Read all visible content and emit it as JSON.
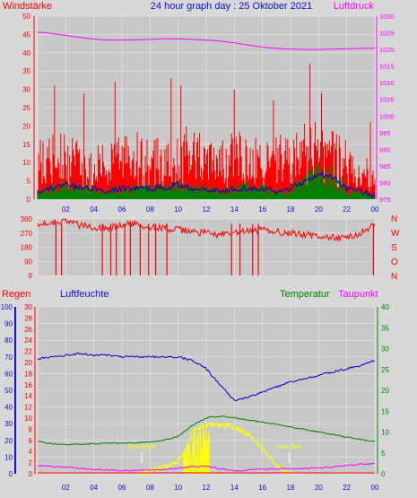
{
  "header": {
    "left_label": "Windstärke",
    "title": "24 hour graph day : 25 Oktober 2021",
    "right_label": "Luftdruck"
  },
  "colors": {
    "background": "#d8d8d8",
    "plot_bg": "#c8c8c8",
    "grid": "#e8e8e8",
    "wind_speed": "#ff0000",
    "wind_avg": "#0000cc",
    "gust_small": "#008000",
    "pressure": "#ff00ff",
    "direction": "#ff0000",
    "rain": "#ff0000",
    "humidity": "#0000cc",
    "temperature": "#008000",
    "dewpoint": "#ff00ff",
    "solar": "#ffff00"
  },
  "chart_data": [
    {
      "type": "line",
      "title": "24 hour graph day : 25 Oktober 2021",
      "left_axis_label": "Windstärke",
      "right_axis_label": "Luftdruck",
      "x_ticks": [
        "02",
        "04",
        "06",
        "08",
        "10",
        "12",
        "14",
        "16",
        "18",
        "20",
        "22",
        "00"
      ],
      "y_left_ticks": [
        "0",
        "5",
        "10",
        "15",
        "20",
        "25",
        "30",
        "35",
        "40",
        "45",
        "50"
      ],
      "y_right_ticks": [
        "975",
        "980",
        "985",
        "990",
        "995",
        "1000",
        "1005",
        "1010",
        "1015",
        "1020",
        "1025",
        "1030"
      ],
      "ylim_left": [
        0,
        50
      ],
      "ylim_right": [
        975,
        1030
      ],
      "grid": true,
      "series": [
        {
          "name": "Windstärke",
          "x": [
            0,
            1,
            2,
            3,
            4,
            5,
            6,
            7,
            8,
            9,
            10,
            11,
            12,
            13,
            14,
            15,
            16,
            17,
            18,
            19,
            20,
            21,
            22,
            23,
            24
          ],
          "values": [
            10,
            12,
            11,
            10,
            9,
            10,
            11,
            12,
            10,
            11,
            12,
            13,
            11,
            10,
            12,
            11,
            10,
            11,
            12,
            14,
            13,
            12,
            10,
            9,
            6
          ],
          "peaks": [
            [
              1.2,
              31
            ],
            [
              3.3,
              29
            ],
            [
              5.5,
              32
            ],
            [
              9.5,
              33
            ],
            [
              10.2,
              31
            ],
            [
              14.0,
              30
            ],
            [
              16.8,
              27
            ],
            [
              19.4,
              37
            ],
            [
              20.2,
              29
            ],
            [
              23.7,
              21
            ]
          ]
        },
        {
          "name": "Windmittel",
          "x": [
            0,
            1,
            2,
            3,
            4,
            5,
            6,
            7,
            8,
            9,
            10,
            11,
            12,
            13,
            14,
            15,
            16,
            17,
            18,
            19,
            20,
            21,
            22,
            23,
            24
          ],
          "values": [
            2,
            3,
            4,
            3,
            3,
            2,
            3,
            3,
            3,
            3,
            4,
            3,
            3,
            2,
            3,
            3,
            3,
            2,
            3,
            5,
            7,
            6,
            3,
            2,
            1
          ]
        },
        {
          "name": "Luftdruck",
          "x": [
            0,
            1,
            2,
            3,
            4,
            5,
            6,
            7,
            8,
            9,
            10,
            11,
            12,
            13,
            14,
            15,
            16,
            17,
            18,
            19,
            20,
            21,
            22,
            23,
            24
          ],
          "values": [
            1025.2,
            1024.8,
            1024.2,
            1023.6,
            1023.1,
            1022.8,
            1022.8,
            1022.9,
            1023.0,
            1023.2,
            1023.2,
            1023.0,
            1022.8,
            1022.5,
            1022.0,
            1021.3,
            1020.7,
            1020.3,
            1020.1,
            1020.0,
            1020.0,
            1020.1,
            1020.2,
            1020.3,
            1020.4
          ]
        }
      ]
    },
    {
      "type": "line",
      "y_left_ticks": [
        "0",
        "90",
        "180",
        "270",
        "360"
      ],
      "y_right_ticks": [
        "N",
        "W",
        "S",
        "O",
        "N"
      ],
      "ylim": [
        0,
        360
      ],
      "x_ticks": [
        "02",
        "04",
        "06",
        "08",
        "10",
        "12",
        "14",
        "16",
        "18",
        "20",
        "22",
        "00"
      ],
      "series": [
        {
          "name": "Windrichtung",
          "x": [
            0,
            1,
            2,
            3,
            4,
            5,
            6,
            7,
            8,
            9,
            10,
            11,
            12,
            13,
            14,
            15,
            16,
            17,
            18,
            19,
            20,
            21,
            22,
            23,
            24
          ],
          "values": [
            330,
            340,
            350,
            320,
            310,
            300,
            320,
            330,
            310,
            300,
            290,
            280,
            270,
            260,
            270,
            280,
            290,
            280,
            270,
            260,
            250,
            240,
            240,
            270,
            330
          ],
          "dropouts": [
            1.3,
            1.7,
            4.6,
            5.2,
            5.6,
            6.2,
            6.6,
            7.3,
            7.9,
            8.4,
            9.2,
            13.8,
            14.4,
            15.3,
            15.7,
            23.9
          ]
        }
      ]
    },
    {
      "type": "line",
      "header_labels": {
        "rain": "Regen",
        "humidity": "Luftfeuchte",
        "temperature": "Temperatur",
        "dewpoint": "Taupunkt"
      },
      "y_humidity_ticks": [
        "0",
        "10",
        "20",
        "30",
        "40",
        "50",
        "60",
        "70",
        "80",
        "90",
        "100"
      ],
      "y_rain_ticks": [
        "0",
        "2",
        "4",
        "6",
        "8",
        "10",
        "12",
        "14",
        "16",
        "18",
        "20",
        "22",
        "24",
        "26",
        "28",
        "30"
      ],
      "y_temp_ticks": [
        "0",
        "5",
        "10",
        "15",
        "20",
        "25",
        "30",
        "35",
        "40"
      ],
      "x_ticks": [
        "02",
        "04",
        "06",
        "08",
        "10",
        "12",
        "14",
        "16",
        "18",
        "20",
        "22",
        "00"
      ],
      "annotations": [
        {
          "text": "Sun Rise",
          "x": 7.4
        },
        {
          "text": "Sun Set",
          "x": 17.9
        }
      ],
      "series": [
        {
          "name": "Luftfeuchte",
          "x": [
            0,
            1,
            2,
            3,
            4,
            5,
            6,
            7,
            8,
            9,
            10,
            11,
            12,
            13,
            14,
            15,
            16,
            17,
            18,
            19,
            20,
            21,
            22,
            23,
            24
          ],
          "values": [
            69,
            70,
            71,
            72,
            71,
            71,
            70,
            70,
            70,
            70,
            70,
            68,
            63,
            53,
            44,
            46,
            49,
            52,
            55,
            57,
            59,
            61,
            63,
            65,
            68
          ]
        },
        {
          "name": "Temperatur",
          "x": [
            0,
            1,
            2,
            3,
            4,
            5,
            6,
            7,
            8,
            9,
            10,
            11,
            12,
            13,
            14,
            15,
            16,
            17,
            18,
            19,
            20,
            21,
            22,
            23,
            24
          ],
          "values": [
            7.8,
            7.2,
            7.0,
            7.0,
            7.2,
            7.3,
            7.3,
            7.4,
            7.6,
            8.0,
            9.0,
            11.6,
            13.4,
            13.8,
            13.4,
            12.8,
            12.4,
            11.8,
            11.2,
            10.6,
            10.0,
            9.4,
            8.8,
            8.2,
            7.8
          ]
        },
        {
          "name": "Taupunkt",
          "x": [
            0,
            1,
            2,
            3,
            4,
            5,
            6,
            7,
            8,
            9,
            10,
            11,
            12,
            13,
            14,
            15,
            16,
            17,
            18,
            19,
            20,
            21,
            22,
            23,
            24
          ],
          "values": [
            2.0,
            1.8,
            1.6,
            1.3,
            1.0,
            0.9,
            0.8,
            0.8,
            0.9,
            1.1,
            1.3,
            1.7,
            1.8,
            1.2,
            0.7,
            0.9,
            1.1,
            1.2,
            1.2,
            1.3,
            1.4,
            1.6,
            2.0,
            2.3,
            2.4
          ]
        },
        {
          "name": "Solar",
          "x": [
            7.4,
            8,
            9,
            10,
            10.6,
            11,
            11.5,
            12,
            12.5,
            13,
            13.5,
            14,
            14.5,
            15,
            15.5,
            16,
            16.5,
            17.2,
            17.9
          ],
          "values": [
            0,
            0.8,
            1.5,
            3,
            6,
            10,
            11,
            11.6,
            11.7,
            11.7,
            11.5,
            11,
            10.4,
            9.4,
            8,
            6,
            4,
            1.5,
            0
          ]
        },
        {
          "name": "Regen",
          "x": [
            0,
            24
          ],
          "values": [
            0,
            0
          ]
        }
      ]
    }
  ]
}
